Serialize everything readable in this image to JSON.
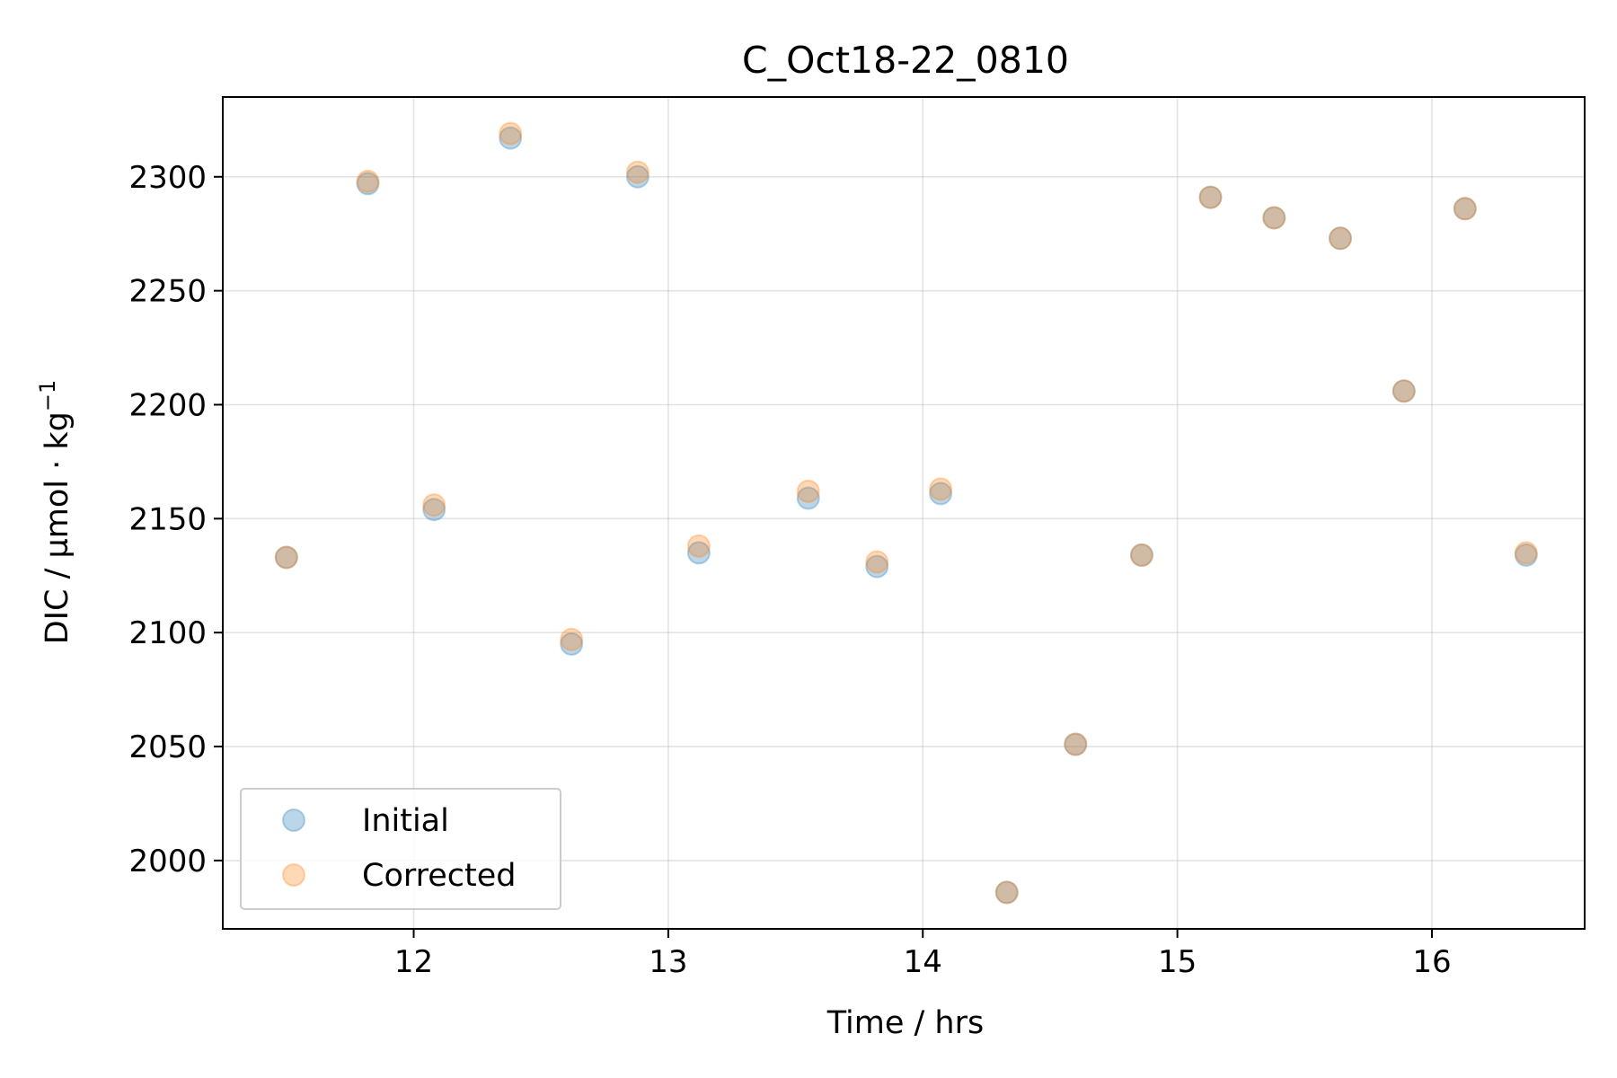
{
  "chart_data": {
    "type": "scatter",
    "title": "C_Oct18-22_0810",
    "xlabel": "Time / hrs",
    "ylabel": {
      "main": "DIC / µmol · kg",
      "superscript": "−1"
    },
    "xlim": [
      11.25,
      16.6
    ],
    "ylim": [
      1970,
      2335
    ],
    "xticks": [
      12,
      13,
      14,
      15,
      16
    ],
    "yticks": [
      2000,
      2050,
      2100,
      2150,
      2200,
      2250,
      2300
    ],
    "grid": true,
    "legend_position": "lower-left",
    "series": [
      {
        "name": "Initial",
        "color": "#1f77b4",
        "x": [
          11.5,
          11.82,
          12.08,
          12.38,
          12.62,
          12.88,
          13.12,
          13.55,
          13.82,
          14.07,
          14.33,
          14.6,
          14.86,
          15.13,
          15.38,
          15.64,
          15.89,
          16.13,
          16.37
        ],
        "y": [
          2133,
          2297,
          2154,
          2317,
          2095,
          2300,
          2135,
          2159,
          2129,
          2161,
          1986,
          2051,
          2134,
          2291,
          2282,
          2273,
          2206,
          2286,
          2134
        ]
      },
      {
        "name": "Corrected",
        "color": "#ff7f0e",
        "x": [
          11.5,
          11.82,
          12.08,
          12.38,
          12.62,
          12.88,
          13.12,
          13.55,
          13.82,
          14.07,
          14.33,
          14.6,
          14.86,
          15.13,
          15.38,
          15.64,
          15.89,
          16.13,
          16.37
        ],
        "y": [
          2133,
          2298,
          2156,
          2319,
          2097,
          2302,
          2138,
          2162,
          2131,
          2163,
          1986,
          2051,
          2134,
          2291,
          2282,
          2273,
          2206,
          2286,
          2135
        ]
      }
    ]
  }
}
